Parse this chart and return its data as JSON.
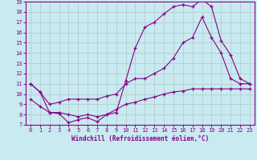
{
  "xlabel": "Windchill (Refroidissement éolien,°C)",
  "xlim": [
    -0.5,
    23.5
  ],
  "ylim": [
    7,
    19
  ],
  "yticks": [
    7,
    8,
    9,
    10,
    11,
    12,
    13,
    14,
    15,
    16,
    17,
    18,
    19
  ],
  "xticks": [
    0,
    1,
    2,
    3,
    4,
    5,
    6,
    7,
    8,
    9,
    10,
    11,
    12,
    13,
    14,
    15,
    16,
    17,
    18,
    19,
    20,
    21,
    22,
    23
  ],
  "bg_color": "#c8eaf0",
  "line_color": "#880088",
  "grid_color": "#b0c8c8",
  "series1_x": [
    0,
    1,
    2,
    3,
    4,
    5,
    6,
    7,
    8,
    9,
    10,
    11,
    12,
    13,
    14,
    15,
    16,
    17,
    18,
    19,
    20,
    21,
    22,
    23
  ],
  "series1_y": [
    11,
    10.2,
    8.2,
    8.1,
    7.2,
    7.5,
    7.7,
    7.3,
    8.0,
    8.2,
    11.3,
    14.5,
    16.5,
    17.0,
    17.8,
    18.5,
    18.7,
    18.5,
    19.2,
    18.5,
    15.2,
    13.8,
    11.5,
    11.0
  ],
  "series2_x": [
    0,
    1,
    2,
    3,
    4,
    5,
    6,
    7,
    8,
    9,
    10,
    11,
    12,
    13,
    14,
    15,
    16,
    17,
    18,
    19,
    20,
    21,
    22,
    23
  ],
  "series2_y": [
    11,
    10.2,
    9.0,
    9.2,
    9.5,
    9.5,
    9.5,
    9.5,
    9.8,
    10.0,
    11.0,
    11.5,
    11.5,
    12.0,
    12.5,
    13.5,
    15.0,
    15.5,
    17.5,
    15.5,
    14.0,
    11.5,
    11.0,
    11.0
  ],
  "series3_x": [
    0,
    1,
    2,
    3,
    4,
    5,
    6,
    7,
    8,
    9,
    10,
    11,
    12,
    13,
    14,
    15,
    16,
    17,
    18,
    19,
    20,
    21,
    22,
    23
  ],
  "series3_y": [
    9.5,
    8.8,
    8.2,
    8.2,
    8.0,
    7.8,
    8.0,
    7.8,
    8.0,
    8.5,
    9.0,
    9.2,
    9.5,
    9.7,
    10.0,
    10.2,
    10.3,
    10.5,
    10.5,
    10.5,
    10.5,
    10.5,
    10.5,
    10.5
  ]
}
